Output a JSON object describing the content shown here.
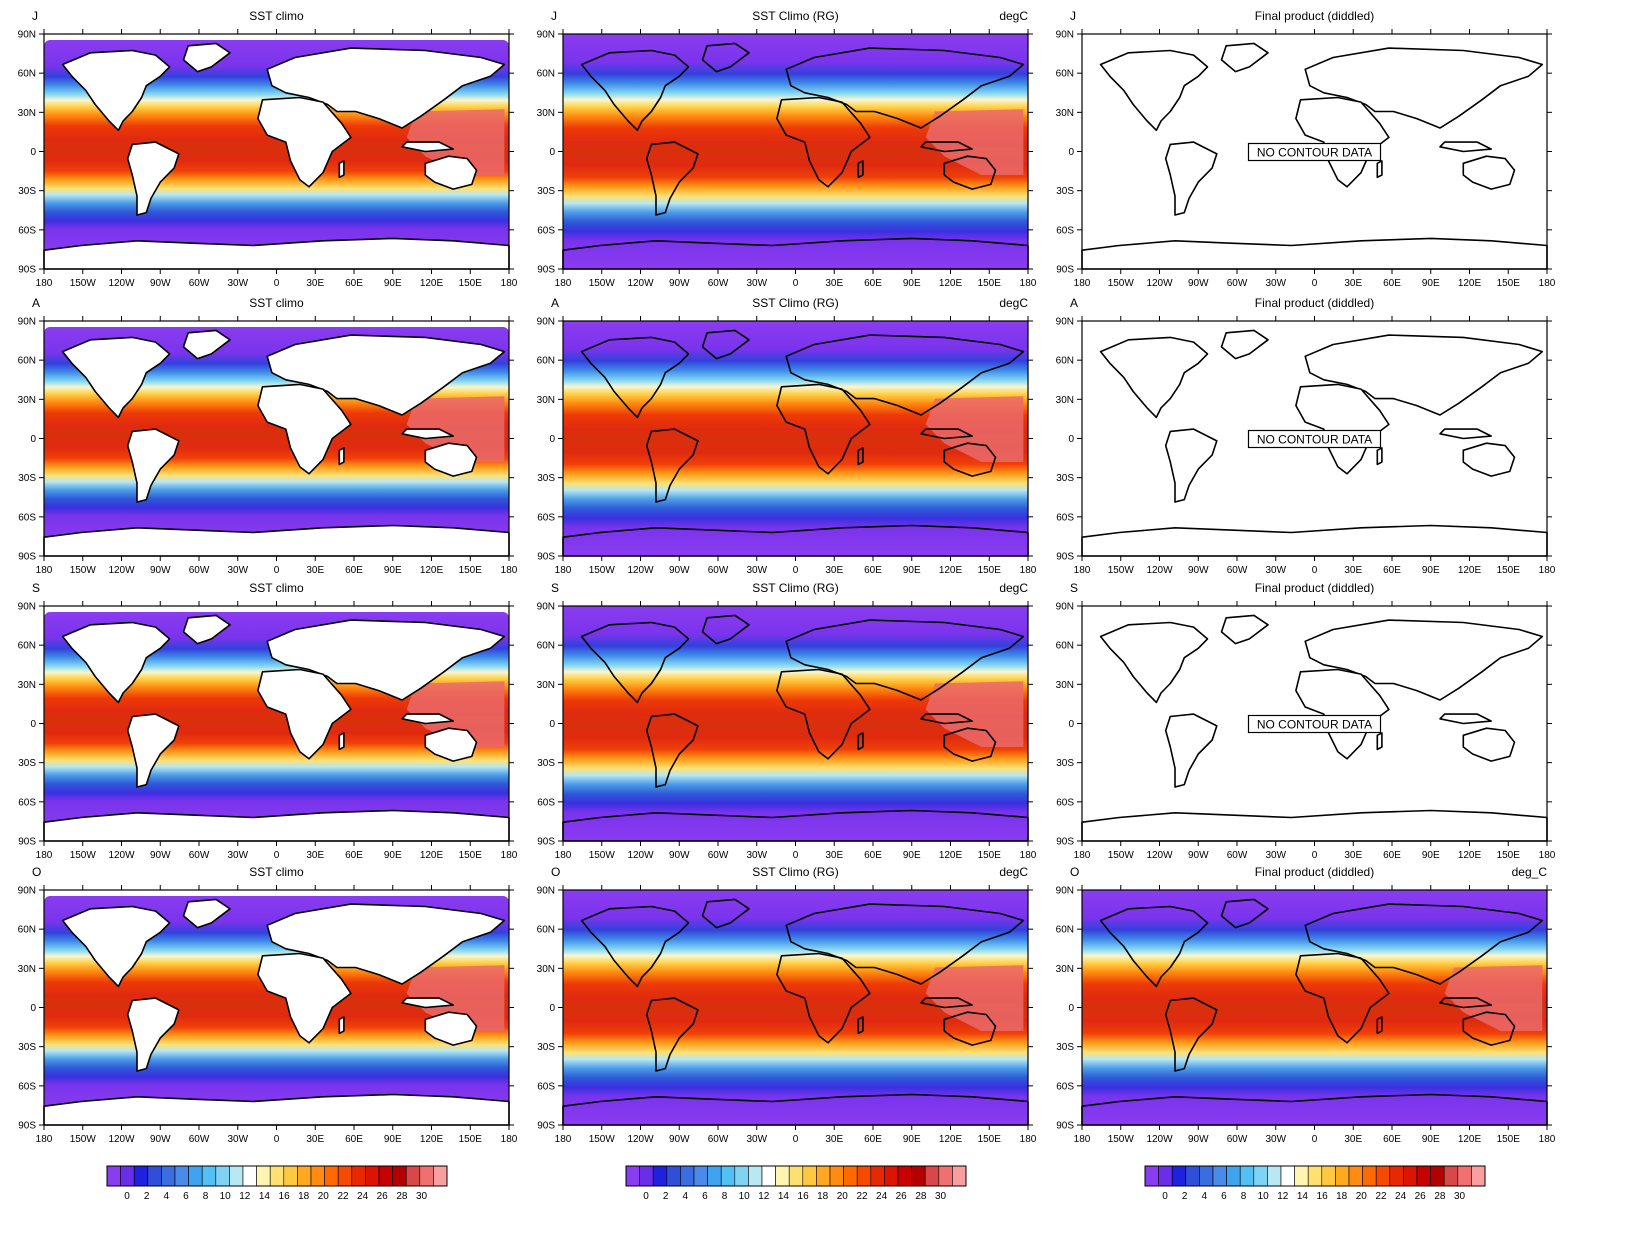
{
  "figure": {
    "months": [
      "J",
      "A",
      "S",
      "O"
    ],
    "columns": [
      {
        "title": "SST climo",
        "units": ""
      },
      {
        "title": "SST Climo (RG)",
        "units": "degC"
      },
      {
        "title": "Final product (diddled)",
        "units": ""
      }
    ],
    "last_row_col3_units": "deg_C",
    "no_data_message": "NO CONTOUR DATA",
    "lat_ticks": [
      "90N",
      "60N",
      "30N",
      "0",
      "30S",
      "60S",
      "90S"
    ],
    "lon_ticks": [
      "180",
      "150W",
      "120W",
      "90W",
      "60W",
      "30W",
      "0",
      "30E",
      "60E",
      "90E",
      "120E",
      "150E",
      "180"
    ],
    "colorbar": {
      "labels": [
        "0",
        "2",
        "4",
        "6",
        "8",
        "10",
        "12",
        "14",
        "16",
        "18",
        "20",
        "22",
        "24",
        "26",
        "28",
        "30"
      ],
      "colors": [
        "#8a3cf0",
        "#6a2ee8",
        "#2020e0",
        "#2f4fd8",
        "#3a6de0",
        "#4a8ae8",
        "#3fa3f0",
        "#52c0f4",
        "#7fd4f4",
        "#b7e8f4",
        "#ffffff",
        "#fff5b0",
        "#ffe070",
        "#ffc840",
        "#ffa820",
        "#ff8c10",
        "#ff6a00",
        "#f54a00",
        "#e82800",
        "#dc1400",
        "#c80000",
        "#b40000",
        "#d84848",
        "#f07070",
        "#f8a0a0"
      ]
    },
    "colors": {
      "land": "#ffffff",
      "coast": "#000000",
      "polar": "#8a3cf0",
      "tropical": "#e02a10",
      "warm_pool": "#ea6a6a"
    }
  },
  "chart_data": {
    "type": "heatmap",
    "variable": "sea surface temperature climatology",
    "units": "degC",
    "range": [
      0,
      30
    ],
    "contour_interval": 2,
    "rows": [
      "J",
      "A",
      "S",
      "O"
    ],
    "panels": [
      {
        "title": "SST climo",
        "has_data": true
      },
      {
        "title": "SST Climo (RG)",
        "has_data": true
      },
      {
        "title": "Final product (diddled)",
        "has_data_by_row": [
          false,
          false,
          false,
          true
        ]
      }
    ]
  }
}
